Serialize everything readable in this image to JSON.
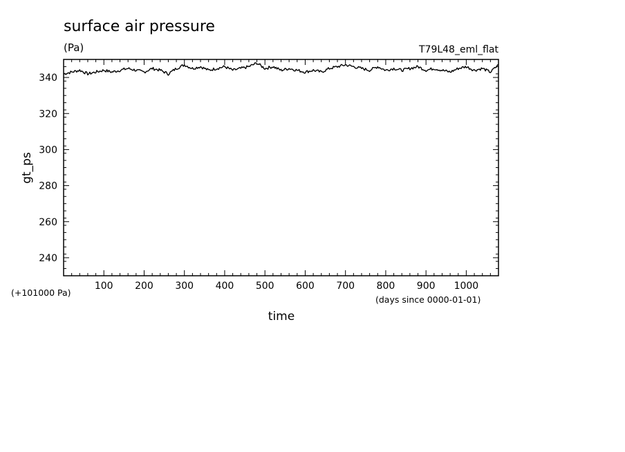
{
  "chart_data": {
    "type": "line",
    "title": "surface air pressure",
    "subtitle": "(Pa)",
    "annotation": "T79L48_eml_flat",
    "ylabel": "gt_ps",
    "xlabel": "time",
    "y_offset_label": "(+101000 Pa)",
    "x_unit_label": "(days since 0000-01-01)",
    "xlim": [
      0,
      1080
    ],
    "ylim": [
      230,
      350
    ],
    "x_ticks": [
      100,
      200,
      300,
      400,
      500,
      600,
      700,
      800,
      900,
      1000
    ],
    "x_tick_labels": [
      "100",
      "200",
      "300",
      "400",
      "500",
      "600",
      "700",
      "800",
      "900",
      "1000"
    ],
    "y_ticks": [
      240,
      260,
      280,
      300,
      320,
      340
    ],
    "y_tick_labels": [
      "240",
      "260",
      "280",
      "300",
      "320",
      "340"
    ],
    "series": [
      {
        "x": [
          0,
          20,
          40,
          60,
          80,
          100,
          120,
          140,
          160,
          180,
          200,
          220,
          240,
          260,
          280,
          300,
          320,
          340,
          360,
          380,
          400,
          420,
          440,
          460,
          480,
          500,
          520,
          540,
          560,
          580,
          600,
          620,
          640,
          660,
          680,
          700,
          720,
          740,
          760,
          780,
          800,
          820,
          840,
          860,
          880,
          900,
          920,
          940,
          960,
          980,
          1000,
          1020,
          1040,
          1060,
          1080
        ],
        "values": [
          342,
          343,
          344,
          342,
          343,
          344,
          343,
          344,
          345,
          344,
          343,
          345,
          344,
          342,
          345,
          347,
          345,
          346,
          344,
          345,
          346,
          344,
          345,
          346,
          348,
          345,
          346,
          344,
          345,
          344,
          343,
          344,
          343,
          345,
          346,
          347,
          346,
          345,
          344,
          346,
          344,
          345,
          344,
          345,
          346,
          344,
          345,
          344,
          343,
          345,
          346,
          344,
          345,
          343,
          347
        ]
      }
    ]
  }
}
